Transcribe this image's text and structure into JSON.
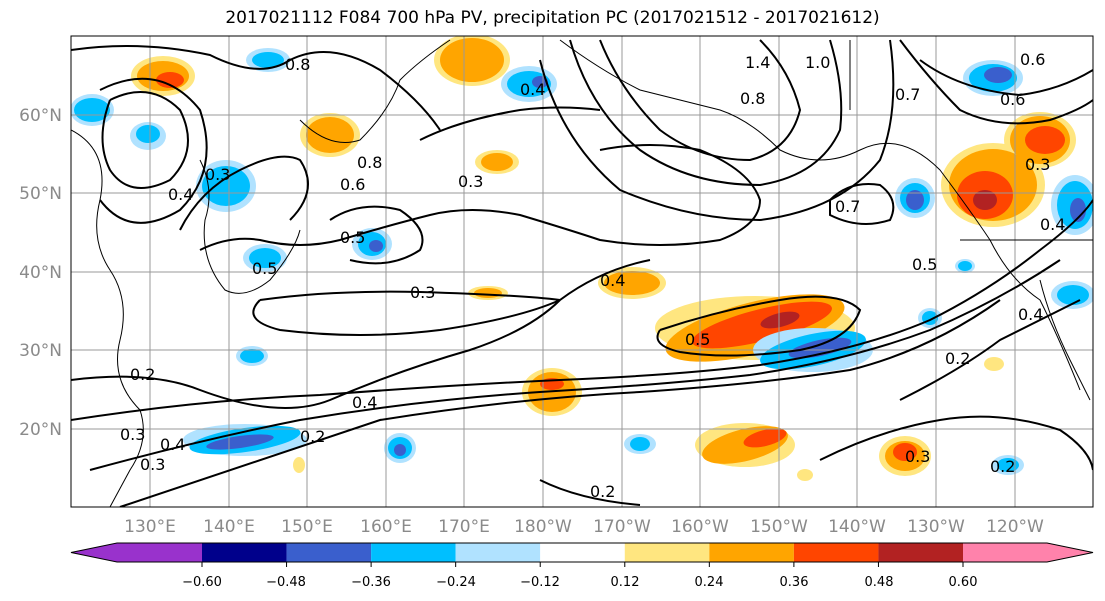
{
  "title": "2017021112 F084 700 hPa PV, precipitation PC (2017021512 - 2017021612)",
  "map": {
    "lat_labels": [
      "60°N",
      "50°N",
      "40°N",
      "30°N",
      "20°N"
    ],
    "lon_labels": [
      "130°E",
      "140°E",
      "150°E",
      "160°E",
      "170°E",
      "180°W",
      "170°W",
      "160°W",
      "150°W",
      "140°W",
      "130°W",
      "120°W"
    ],
    "contour_labels": [
      "0.8",
      "0.3",
      "0.4",
      "0.6",
      "0.8",
      "0.5",
      "0.5",
      "0.3",
      "0.3",
      "0.4",
      "0.2",
      "0.3",
      "0.4",
      "0.3",
      "0.2",
      "0.4",
      "0.5",
      "1.4",
      "1.0",
      "0.8",
      "0.7",
      "0.7",
      "0.5",
      "0.6",
      "0.6",
      "0.3",
      "0.4",
      "0.4",
      "0.2",
      "0.3",
      "0.2",
      "0.2",
      "0.4"
    ],
    "grid_color": "#999999",
    "contour_color": "#000000"
  },
  "colorbar": {
    "tick_labels": [
      "−0.60",
      "−0.48",
      "−0.36",
      "−0.24",
      "−0.12",
      "0.12",
      "0.24",
      "0.36",
      "0.48",
      "0.60"
    ],
    "colors": [
      "#9932cc",
      "#00008b",
      "#3a5fcd",
      "#00bfff",
      "#b0e2ff",
      "#ffffff",
      "#ffe680",
      "#ffa500",
      "#ff4500",
      "#b22222",
      "#ff82ab"
    ]
  }
}
